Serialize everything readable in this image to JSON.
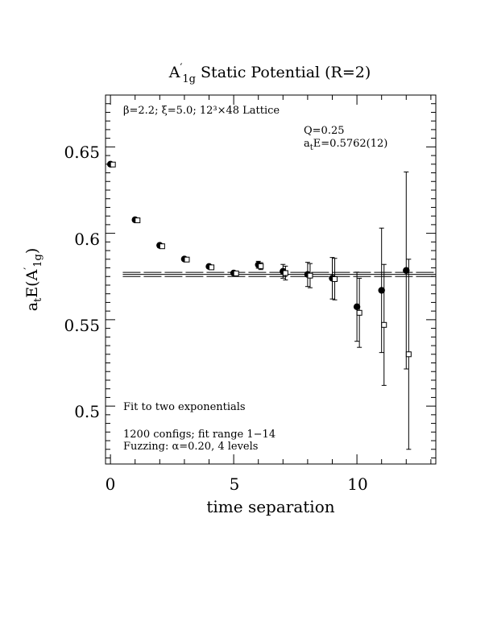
{
  "title_main": "A",
  "title_prime": "′",
  "title_sub": "1g",
  "title_rest": " Static Potential (R=2)",
  "lattice_info": "β=2.2; ξ=5.0; 12³×48 Lattice",
  "q_label": "Q=0.25",
  "energy_a": "a",
  "energy_t": "t",
  "energy_rest": "E=0.5762(12)",
  "fit_note_1": "Fit to two exponentials",
  "fit_note_2": "1200 configs; fit range 1−14",
  "fit_note_3": "Fuzzing: α=0.20, 4 levels",
  "ylabel_a": "a",
  "ylabel_t": "t",
  "ylabel_E": "E(A",
  "ylabel_prime": "′",
  "ylabel_sub": "1g",
  "ylabel_close": ")",
  "xlabel": "time separation",
  "chart_data": {
    "type": "scatter",
    "xlim": [
      -0.2,
      13.2
    ],
    "ylim": [
      0.4665,
      0.68
    ],
    "x_ticks": [
      0,
      5,
      10
    ],
    "y_ticks": [
      0.5,
      0.55,
      0.6,
      0.65
    ],
    "x_tick_labels": [
      "0",
      "5",
      "10"
    ],
    "y_tick_labels": [
      "0.5",
      "0.55",
      "0.6",
      "0.65"
    ],
    "fit": {
      "value": 0.5762,
      "error": 0.0012,
      "range": [
        0.5,
        13.2
      ]
    },
    "series": [
      {
        "marker": "filled-circle",
        "points": [
          {
            "x": 0,
            "y": 0.64,
            "err": 0.0
          },
          {
            "x": 1,
            "y": 0.6078,
            "err": 0.0
          },
          {
            "x": 2,
            "y": 0.593,
            "err": 0.0
          },
          {
            "x": 3,
            "y": 0.5851,
            "err": 0.0
          },
          {
            "x": 4,
            "y": 0.5808,
            "err": 0.0
          },
          {
            "x": 5,
            "y": 0.577,
            "err": 0.0
          },
          {
            "x": 6,
            "y": 0.5818,
            "err": 0.002
          },
          {
            "x": 7,
            "y": 0.578,
            "err": 0.004
          },
          {
            "x": 8,
            "y": 0.5762,
            "err": 0.007
          },
          {
            "x": 9,
            "y": 0.574,
            "err": 0.012
          },
          {
            "x": 10,
            "y": 0.5575,
            "err": 0.02
          },
          {
            "x": 11,
            "y": 0.567,
            "err": 0.036
          },
          {
            "x": 12,
            "y": 0.5785,
            "err": 0.057
          }
        ]
      },
      {
        "marker": "open-square",
        "points": [
          {
            "x": 0.1,
            "y": 0.6398,
            "err": 0.0
          },
          {
            "x": 1.1,
            "y": 0.6075,
            "err": 0.0
          },
          {
            "x": 2.1,
            "y": 0.5925,
            "err": 0.0
          },
          {
            "x": 3.1,
            "y": 0.5848,
            "err": 0.0
          },
          {
            "x": 4.1,
            "y": 0.5803,
            "err": 0.0
          },
          {
            "x": 5.1,
            "y": 0.5768,
            "err": 0.0
          },
          {
            "x": 6.1,
            "y": 0.581,
            "err": 0.002
          },
          {
            "x": 7.1,
            "y": 0.577,
            "err": 0.004
          },
          {
            "x": 8.1,
            "y": 0.5755,
            "err": 0.007
          },
          {
            "x": 9.1,
            "y": 0.5735,
            "err": 0.012
          },
          {
            "x": 10.1,
            "y": 0.554,
            "err": 0.02
          },
          {
            "x": 11.1,
            "y": 0.547,
            "err": 0.035
          },
          {
            "x": 12.1,
            "y": 0.53,
            "err": 0.055
          }
        ]
      }
    ]
  }
}
